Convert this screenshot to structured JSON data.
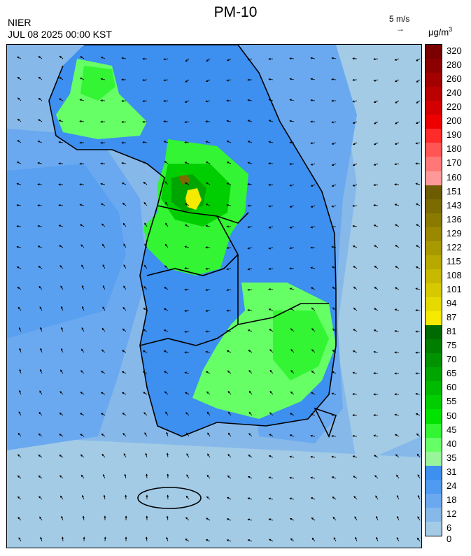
{
  "header": {
    "title": "PM-10",
    "agency": "NIER",
    "datetime": "JUL 08 2025 00:00 KST",
    "wind_reference": "5 m/s",
    "wind_reference_arrow": "→",
    "unit_base": "μg/m",
    "unit_exp": "3"
  },
  "legend": {
    "levels": [
      {
        "label": "320",
        "color": "#7a0000"
      },
      {
        "label": "280",
        "color": "#8c0000"
      },
      {
        "label": "260",
        "color": "#a30000"
      },
      {
        "label": "240",
        "color": "#bb0000"
      },
      {
        "label": "220",
        "color": "#d40000"
      },
      {
        "label": "200",
        "color": "#ee0000"
      },
      {
        "label": "190",
        "color": "#ff2a2a"
      },
      {
        "label": "180",
        "color": "#ff5555"
      },
      {
        "label": "170",
        "color": "#ff7777"
      },
      {
        "label": "160",
        "color": "#ff9999"
      },
      {
        "label": "151",
        "color": "#6e5c00"
      },
      {
        "label": "143",
        "color": "#7c6b00"
      },
      {
        "label": "136",
        "color": "#8b7a00"
      },
      {
        "label": "129",
        "color": "#9a8900"
      },
      {
        "label": "122",
        "color": "#a99900"
      },
      {
        "label": "115",
        "color": "#b8a900"
      },
      {
        "label": "108",
        "color": "#c7b900"
      },
      {
        "label": "101",
        "color": "#d6c900"
      },
      {
        "label": "94",
        "color": "#e5da00"
      },
      {
        "label": "87",
        "color": "#f5ea00"
      },
      {
        "label": "81",
        "color": "#006a00"
      },
      {
        "label": "75",
        "color": "#007e00"
      },
      {
        "label": "70",
        "color": "#009200"
      },
      {
        "label": "65",
        "color": "#00a600"
      },
      {
        "label": "60",
        "color": "#00ba00"
      },
      {
        "label": "55",
        "color": "#00ce00"
      },
      {
        "label": "50",
        "color": "#00e200"
      },
      {
        "label": "45",
        "color": "#33f533"
      },
      {
        "label": "40",
        "color": "#66ff66"
      },
      {
        "label": "35",
        "color": "#99f59a"
      },
      {
        "label": "31",
        "color": "#3d8ff0"
      },
      {
        "label": "24",
        "color": "#4f9bf2"
      },
      {
        "label": "18",
        "color": "#6aa9f0"
      },
      {
        "label": "12",
        "color": "#86b9ea"
      },
      {
        "label": "6",
        "color": "#a3cbe6"
      },
      {
        "label": "0",
        "color": ""
      }
    ]
  }
}
